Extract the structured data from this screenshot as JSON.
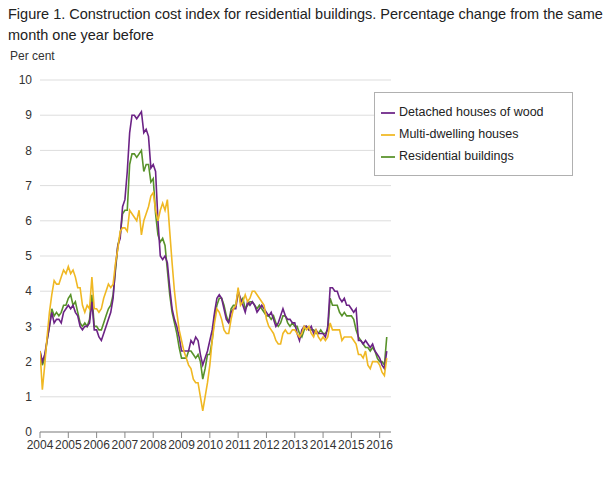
{
  "chart_data": {
    "type": "line",
    "title": "Figure 1. Construction cost index for residential buildings. Percentage change from the same month one year before",
    "y_label": "Per cent",
    "x": [
      2004,
      2004.083,
      2004.167,
      2004.25,
      2004.333,
      2004.417,
      2004.5,
      2004.583,
      2004.667,
      2004.75,
      2004.833,
      2004.917,
      2005,
      2005.083,
      2005.167,
      2005.25,
      2005.333,
      2005.417,
      2005.5,
      2005.583,
      2005.667,
      2005.75,
      2005.833,
      2005.917,
      2006,
      2006.083,
      2006.167,
      2006.25,
      2006.333,
      2006.417,
      2006.5,
      2006.583,
      2006.667,
      2006.75,
      2006.833,
      2006.917,
      2007,
      2007.083,
      2007.167,
      2007.25,
      2007.333,
      2007.417,
      2007.5,
      2007.583,
      2007.667,
      2007.75,
      2007.833,
      2007.917,
      2008,
      2008.083,
      2008.167,
      2008.25,
      2008.333,
      2008.417,
      2008.5,
      2008.583,
      2008.667,
      2008.75,
      2008.833,
      2008.917,
      2009,
      2009.083,
      2009.167,
      2009.25,
      2009.333,
      2009.417,
      2009.5,
      2009.583,
      2009.667,
      2009.75,
      2009.833,
      2009.917,
      2010,
      2010.083,
      2010.167,
      2010.25,
      2010.333,
      2010.417,
      2010.5,
      2010.583,
      2010.667,
      2010.75,
      2010.833,
      2010.917,
      2011,
      2011.083,
      2011.167,
      2011.25,
      2011.333,
      2011.417,
      2011.5,
      2011.583,
      2011.667,
      2011.75,
      2011.833,
      2011.917,
      2012,
      2012.083,
      2012.167,
      2012.25,
      2012.333,
      2012.417,
      2012.5,
      2012.583,
      2012.667,
      2012.75,
      2012.833,
      2012.917,
      2013,
      2013.083,
      2013.167,
      2013.25,
      2013.333,
      2013.417,
      2013.5,
      2013.583,
      2013.667,
      2013.75,
      2013.833,
      2013.917,
      2014,
      2014.083,
      2014.167,
      2014.25,
      2014.333,
      2014.417,
      2014.5,
      2014.583,
      2014.667,
      2014.75,
      2014.833,
      2014.917,
      2015,
      2015.083,
      2015.167,
      2015.25,
      2015.333,
      2015.417,
      2015.5,
      2015.583,
      2015.667,
      2015.75,
      2015.833,
      2015.917,
      2016,
      2016.083,
      2016.167,
      2016.25
    ],
    "series": [
      {
        "name": "Residential buildings",
        "color": "#58922a",
        "values": [
          2.3,
          1.9,
          2.1,
          2.6,
          3.0,
          3.5,
          3.3,
          3.4,
          3.3,
          3.4,
          3.6,
          3.6,
          3.8,
          3.9,
          3.6,
          3.7,
          3.4,
          3.1,
          3.0,
          3.1,
          3.0,
          3.2,
          3.9,
          3.0,
          3.0,
          2.9,
          2.9,
          3.1,
          3.3,
          3.5,
          3.6,
          3.9,
          4.6,
          5.3,
          5.6,
          6.2,
          6.3,
          6.3,
          7.6,
          7.9,
          7.9,
          7.8,
          7.9,
          8.0,
          7.4,
          7.6,
          7.6,
          7.1,
          7.2,
          6.2,
          5.6,
          5.4,
          5.5,
          5.3,
          4.6,
          3.9,
          3.4,
          3.1,
          2.8,
          2.4,
          2.1,
          2.1,
          2.1,
          2.3,
          2.3,
          2.2,
          2.1,
          2.2,
          2.0,
          1.5,
          1.8,
          2.2,
          2.2,
          2.6,
          3.3,
          3.6,
          3.8,
          3.8,
          3.6,
          3.3,
          3.1,
          3.5,
          3.6,
          3.6,
          4.0,
          3.7,
          3.8,
          3.5,
          3.6,
          3.7,
          3.7,
          3.6,
          3.5,
          3.6,
          3.5,
          3.4,
          3.3,
          3.3,
          3.2,
          3.3,
          3.1,
          3.0,
          3.1,
          3.3,
          3.3,
          3.1,
          3.0,
          3.1,
          3.0,
          3.0,
          2.8,
          2.7,
          2.9,
          3.0,
          2.9,
          2.9,
          2.9,
          2.8,
          2.8,
          2.9,
          2.8,
          2.8,
          2.9,
          3.8,
          3.6,
          3.6,
          3.6,
          3.4,
          3.3,
          3.4,
          3.3,
          3.3,
          3.3,
          3.2,
          2.9,
          2.7,
          2.6,
          2.5,
          2.4,
          2.4,
          2.3,
          2.4,
          2.3,
          2.1,
          2.0,
          2.0,
          1.9,
          2.7
        ]
      },
      {
        "name": "Detached houses of wood",
        "color": "#6c2386",
        "values": [
          2.3,
          2.0,
          2.2,
          2.6,
          3.0,
          3.4,
          3.1,
          3.2,
          3.2,
          3.1,
          3.4,
          3.5,
          3.6,
          3.5,
          3.6,
          3.4,
          3.3,
          3.0,
          2.9,
          3.0,
          3.0,
          3.1,
          3.7,
          2.9,
          2.9,
          2.7,
          2.6,
          2.8,
          3.0,
          3.2,
          3.4,
          3.8,
          4.7,
          5.3,
          5.5,
          6.4,
          6.6,
          7.4,
          8.5,
          9.0,
          9.0,
          8.9,
          9.0,
          9.1,
          8.5,
          8.6,
          8.4,
          7.5,
          7.6,
          7.4,
          6.0,
          5.0,
          4.9,
          5.0,
          4.8,
          4.1,
          3.5,
          3.2,
          3.0,
          2.7,
          2.3,
          2.3,
          2.3,
          2.3,
          2.6,
          2.5,
          2.7,
          2.6,
          2.2,
          1.9,
          2.1,
          2.3,
          2.6,
          2.9,
          3.4,
          3.8,
          3.9,
          3.8,
          3.5,
          3.2,
          3.1,
          3.4,
          3.5,
          3.5,
          4.0,
          3.8,
          3.6,
          3.4,
          3.7,
          3.6,
          3.7,
          3.6,
          3.4,
          3.5,
          3.6,
          3.5,
          3.4,
          3.3,
          3.4,
          3.2,
          3.0,
          3.1,
          3.3,
          3.5,
          3.3,
          3.2,
          3.2,
          3.1,
          3.1,
          2.8,
          2.6,
          2.9,
          3.0,
          3.0,
          2.9,
          3.0,
          2.8,
          2.9,
          2.8,
          2.8,
          2.8,
          2.7,
          3.0,
          4.1,
          4.1,
          4.0,
          4.0,
          3.8,
          3.7,
          3.8,
          3.6,
          3.6,
          3.5,
          3.4,
          3.5,
          2.6,
          2.6,
          2.5,
          2.6,
          2.5,
          2.4,
          2.5,
          2.3,
          2.2,
          2.1,
          1.9,
          1.8,
          2.3
        ]
      },
      {
        "name": "Multi-dwelling houses",
        "color": "#f0b823",
        "values": [
          2.3,
          1.2,
          1.9,
          2.7,
          3.4,
          3.9,
          4.3,
          4.2,
          4.2,
          4.4,
          4.6,
          4.5,
          4.7,
          4.5,
          4.6,
          4.4,
          4.1,
          4.1,
          3.6,
          3.4,
          3.6,
          3.5,
          4.4,
          3.5,
          3.5,
          3.4,
          3.5,
          3.8,
          4.0,
          4.2,
          4.1,
          4.2,
          4.8,
          5.2,
          5.7,
          5.8,
          5.8,
          5.7,
          6.3,
          6.2,
          6.1,
          6.0,
          6.3,
          5.6,
          6.0,
          6.2,
          6.4,
          6.7,
          6.8,
          6.3,
          6.0,
          6.3,
          6.5,
          6.3,
          6.6,
          5.7,
          4.8,
          4.0,
          3.4,
          2.9,
          2.6,
          2.3,
          2.1,
          1.9,
          1.8,
          1.5,
          1.4,
          1.4,
          1.0,
          0.6,
          1.0,
          1.4,
          1.9,
          2.6,
          3.1,
          3.5,
          3.4,
          3.2,
          2.9,
          2.8,
          2.8,
          3.2,
          3.5,
          3.6,
          4.1,
          3.6,
          3.7,
          3.9,
          3.7,
          3.8,
          4.0,
          4.0,
          3.9,
          3.8,
          3.7,
          3.6,
          3.2,
          3.0,
          2.9,
          2.8,
          2.6,
          2.5,
          2.5,
          2.8,
          2.9,
          2.8,
          2.8,
          2.9,
          2.9,
          2.8,
          2.7,
          2.8,
          3.0,
          2.9,
          3.0,
          2.8,
          2.7,
          2.9,
          2.7,
          2.6,
          2.7,
          2.6,
          2.7,
          3.1,
          2.9,
          2.9,
          2.9,
          2.9,
          2.6,
          2.7,
          2.7,
          2.7,
          2.7,
          2.6,
          2.5,
          2.2,
          2.2,
          2.1,
          2.3,
          1.9,
          1.8,
          2.0,
          2.0,
          2.0,
          1.9,
          1.7,
          1.6,
          2.1
        ]
      }
    ],
    "xlim": [
      2004,
      2016.4
    ],
    "xticks": [
      2004,
      2005,
      2006,
      2007,
      2008,
      2009,
      2010,
      2011,
      2012,
      2013,
      2014,
      2015,
      2016
    ],
    "ylim": [
      0,
      10
    ],
    "yticks": [
      0,
      1,
      2,
      3,
      4,
      5,
      6,
      7,
      8,
      9,
      10
    ],
    "grid": true,
    "legend": "top-right"
  }
}
